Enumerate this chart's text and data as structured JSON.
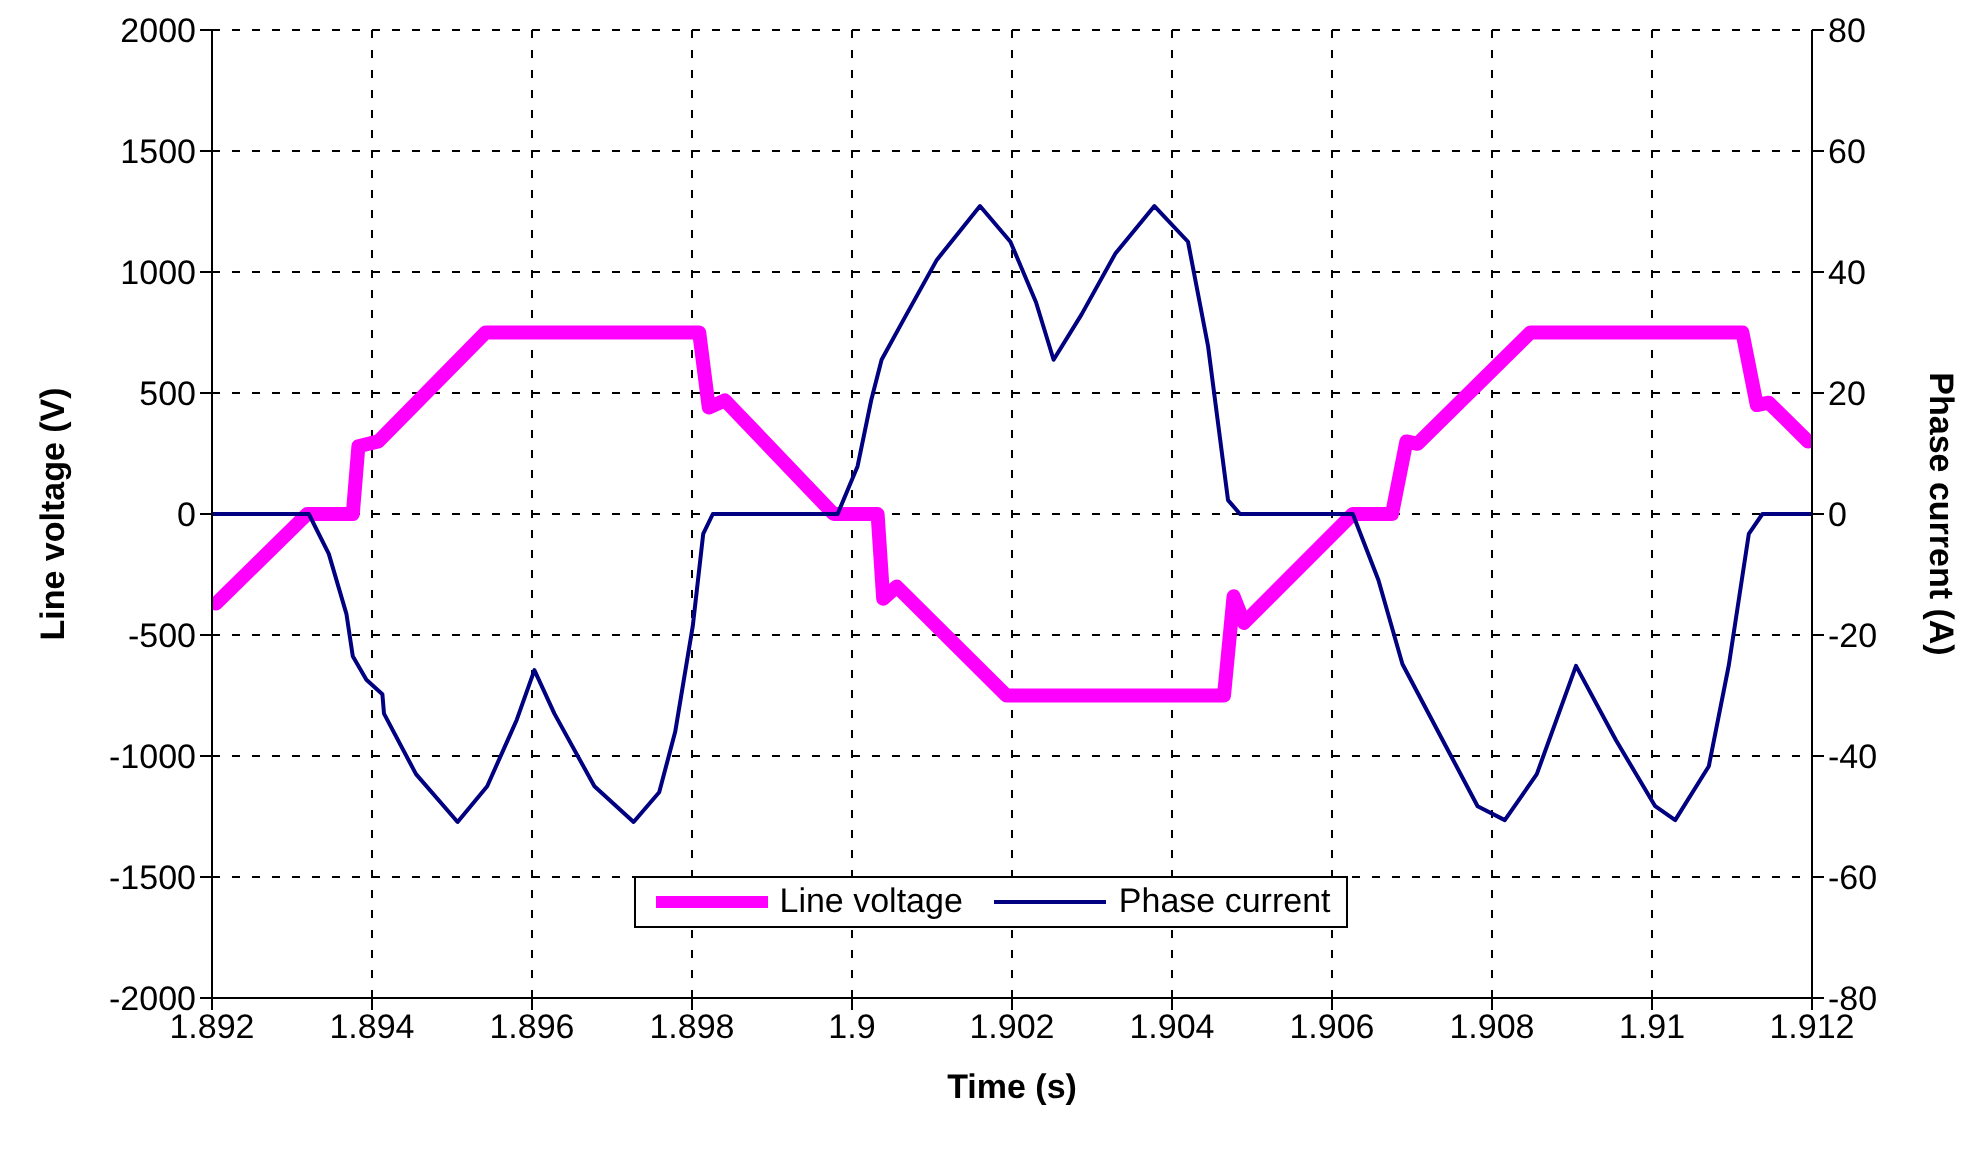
{
  "chart_data": {
    "type": "line",
    "xlabel": "Time (s)",
    "ylabel": "Line voltage (V)",
    "y2label": "Phase current (A)",
    "xlim": [
      1.892,
      1.912
    ],
    "xticks": [
      1.892,
      1.894,
      1.896,
      1.898,
      1.9,
      1.902,
      1.904,
      1.906,
      1.908,
      1.91,
      1.912
    ],
    "ylim": [
      -2000,
      2000
    ],
    "yticks": [
      -2000,
      -1500,
      -1000,
      -500,
      0,
      500,
      1000,
      1500,
      2000
    ],
    "y2lim": [
      -80,
      80
    ],
    "y2ticks": [
      -80,
      -60,
      -40,
      -20,
      0,
      20,
      40,
      60,
      80
    ],
    "grid": true,
    "legend": "bottom",
    "marker": "none",
    "series": [
      {
        "name": "Line voltage",
        "color": "#ff00ff",
        "x": [
          1.89205,
          1.89319,
          1.89376,
          1.89383,
          1.89408,
          1.89542,
          1.89809,
          1.89821,
          1.89841,
          1.89977,
          1.90032,
          1.90039,
          1.90056,
          1.90193,
          1.90465,
          1.90477,
          1.9049,
          1.90626,
          1.90675,
          1.90693,
          1.90707,
          1.90848,
          1.91113,
          1.91131,
          1.91146,
          1.91195
        ],
        "values": [
          -370,
          0,
          0,
          280,
          300,
          750,
          750,
          440,
          470,
          0,
          0,
          -350,
          -300,
          -750,
          -750,
          -340,
          -450,
          0,
          0,
          300,
          290,
          750,
          750,
          450,
          460,
          300
        ]
      },
      {
        "name": "Phase current",
        "color": "#000080",
        "axis": "y2",
        "x": [
          1.892,
          1.89321,
          1.89346,
          1.89368,
          1.89376,
          1.89393,
          1.89413,
          1.89415,
          1.89455,
          1.89507,
          1.89544,
          1.89581,
          1.89603,
          1.89628,
          1.89678,
          1.89727,
          1.89759,
          1.89779,
          1.89801,
          1.89814,
          1.89826,
          1.89982,
          1.90007,
          1.90024,
          1.90037,
          1.90064,
          1.90106,
          1.9016,
          1.90198,
          1.9023,
          1.90252,
          1.90287,
          1.90329,
          1.90378,
          1.9042,
          1.90445,
          1.9047,
          1.90485,
          1.90626,
          1.90658,
          1.90688,
          1.90742,
          1.90782,
          1.90816,
          1.90856,
          1.90905,
          1.90955,
          1.91004,
          1.91029,
          1.91071,
          1.91096,
          1.91121,
          1.91138,
          1.912
        ],
        "values": [
          0,
          0,
          -6.6,
          -16.5,
          -23.5,
          -27.4,
          -29.8,
          -33,
          -43,
          -50.9,
          -45,
          -34,
          -25.8,
          -33,
          -45,
          -50.9,
          -46,
          -36,
          -18.5,
          -3.3,
          0,
          0,
          7.9,
          18.8,
          25.5,
          32,
          42,
          50.9,
          45,
          35,
          25.5,
          33,
          43,
          50.9,
          45,
          27.8,
          2.3,
          0,
          0,
          -10.9,
          -24.8,
          -38.3,
          -48.3,
          -50.6,
          -43,
          -25.1,
          -37.4,
          -48.3,
          -50.6,
          -41.7,
          -25,
          -3.3,
          0,
          0
        ]
      }
    ]
  }
}
